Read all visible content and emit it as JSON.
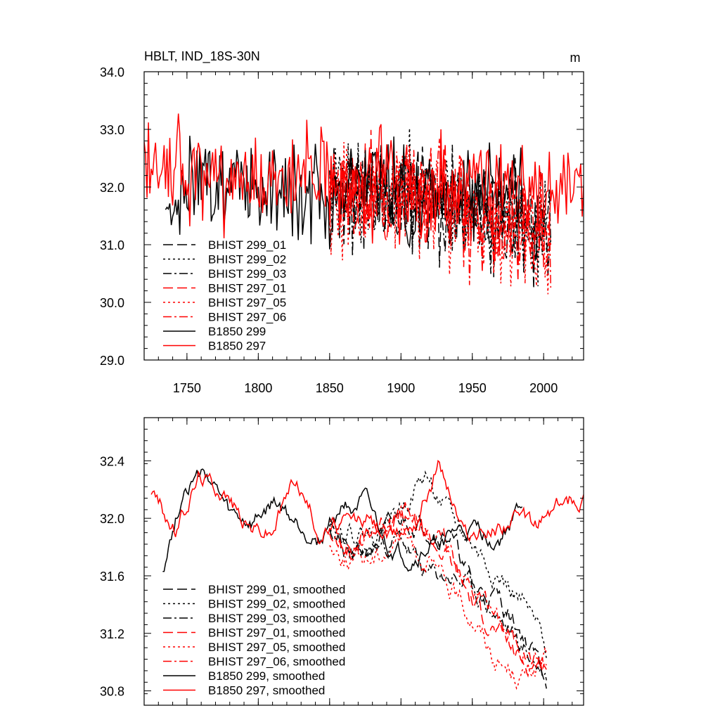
{
  "chart_data": [
    {
      "type": "line",
      "title": "HBLT, IND_18S-30N",
      "units": "m",
      "xlim": [
        1720,
        2028
      ],
      "ylim": [
        29.0,
        34.0
      ],
      "x_ticks": [
        1750,
        1800,
        1850,
        1900,
        1950,
        2000
      ],
      "x_tick_labels": [
        "1750",
        "1800",
        "1850",
        "1900",
        "1950",
        "2000"
      ],
      "y_ticks": [
        29.0,
        30.0,
        31.0,
        32.0,
        33.0,
        34.0
      ],
      "y_tick_labels": [
        "29.0",
        "30.0",
        "31.0",
        "32.0",
        "33.0",
        "34.0"
      ],
      "legend_position": "lower-left",
      "series": [
        {
          "name": "BHIST 299_01",
          "color": "#000000",
          "dash": "dash",
          "start": 1850,
          "end": 2005,
          "base": [
            31.9,
            31.85,
            31.85,
            31.8,
            31.6,
            31.4,
            31.2
          ],
          "amp": 0.55,
          "seed": 11
        },
        {
          "name": "BHIST 299_02",
          "color": "#000000",
          "dash": "dot",
          "start": 1850,
          "end": 2005,
          "base": [
            31.9,
            31.85,
            32.05,
            31.9,
            31.5,
            31.3,
            31.1
          ],
          "amp": 0.55,
          "seed": 12
        },
        {
          "name": "BHIST 299_03",
          "color": "#000000",
          "dash": "dashdot",
          "start": 1850,
          "end": 2005,
          "base": [
            31.85,
            31.8,
            31.9,
            31.7,
            31.4,
            31.3,
            31.0
          ],
          "amp": 0.55,
          "seed": 13
        },
        {
          "name": "BHIST 297_01",
          "color": "#ff0000",
          "dash": "dash",
          "start": 1850,
          "end": 2005,
          "base": [
            31.9,
            31.8,
            32.0,
            31.9,
            31.6,
            31.2,
            31.0
          ],
          "amp": 0.55,
          "seed": 14
        },
        {
          "name": "BHIST 297_05",
          "color": "#ff0000",
          "dash": "dot",
          "start": 1850,
          "end": 2005,
          "base": [
            31.85,
            31.8,
            31.9,
            31.75,
            31.4,
            31.1,
            30.9
          ],
          "amp": 0.55,
          "seed": 15
        },
        {
          "name": "BHIST 297_06",
          "color": "#ff0000",
          "dash": "dashdot",
          "start": 1850,
          "end": 2005,
          "base": [
            31.9,
            31.9,
            32.0,
            31.8,
            31.5,
            31.2,
            31.0
          ],
          "amp": 0.55,
          "seed": 16
        },
        {
          "name": "B1850 299",
          "color": "#000000",
          "dash": "solid",
          "start": 1735,
          "end": 1985,
          "base": [
            31.7,
            32.2,
            32.0,
            32.0,
            31.9,
            32.2,
            31.8,
            31.9,
            31.9,
            32.1
          ],
          "amp": 0.5,
          "seed": 17
        },
        {
          "name": "B1850 297",
          "color": "#ff0000",
          "dash": "solid",
          "start": 1720,
          "end": 2028,
          "base": [
            32.2,
            32.4,
            32.1,
            31.9,
            32.2,
            31.9,
            32.0,
            31.9,
            32.1,
            32.0,
            31.9,
            32.1
          ],
          "amp": 0.5,
          "seed": 18
        }
      ]
    },
    {
      "type": "line",
      "title": "",
      "xlim": [
        1720,
        2028
      ],
      "ylim": [
        30.7,
        32.7
      ],
      "x_ticks": [
        1750,
        1800,
        1850,
        1900,
        1950,
        2000
      ],
      "x_tick_labels": [],
      "y_ticks": [
        30.8,
        31.2,
        31.6,
        32.0,
        32.4
      ],
      "y_tick_labels": [
        "30.8",
        "31.2",
        "31.6",
        "32.0",
        "32.4"
      ],
      "legend_position": "lower-left",
      "series": [
        {
          "name": "BHIST 299_01, smoothed",
          "color": "#000000",
          "dash": "dash",
          "start": 1850,
          "end": 2002,
          "base": [
            31.95,
            31.7,
            31.85,
            32.0,
            31.95,
            31.9,
            31.5,
            31.45,
            31.2,
            30.9
          ],
          "amp": 0.12,
          "seed": 21
        },
        {
          "name": "BHIST 299_02, smoothed",
          "color": "#000000",
          "dash": "dot",
          "start": 1850,
          "end": 2002,
          "base": [
            32.0,
            31.9,
            31.9,
            32.1,
            32.3,
            32.0,
            31.8,
            31.6,
            31.4,
            31.1
          ],
          "amp": 0.12,
          "seed": 22
        },
        {
          "name": "BHIST 299_03, smoothed",
          "color": "#000000",
          "dash": "dashdot",
          "start": 1850,
          "end": 2002,
          "base": [
            31.9,
            31.7,
            31.8,
            31.85,
            31.6,
            31.6,
            31.5,
            31.3,
            31.1,
            30.9
          ],
          "amp": 0.12,
          "seed": 23
        },
        {
          "name": "BHIST 297_01, smoothed",
          "color": "#ff0000",
          "dash": "dash",
          "start": 1850,
          "end": 2002,
          "base": [
            31.95,
            31.8,
            31.95,
            32.05,
            31.9,
            31.7,
            31.4,
            31.2,
            31.0,
            31.0
          ],
          "amp": 0.12,
          "seed": 24
        },
        {
          "name": "BHIST 297_05, smoothed",
          "color": "#ff0000",
          "dash": "dot",
          "start": 1850,
          "end": 2002,
          "base": [
            31.8,
            31.7,
            31.75,
            31.9,
            31.7,
            31.5,
            31.3,
            31.0,
            30.9,
            31.0
          ],
          "amp": 0.12,
          "seed": 25
        },
        {
          "name": "BHIST 297_06, smoothed",
          "color": "#ff0000",
          "dash": "dashdot",
          "start": 1850,
          "end": 2002,
          "base": [
            31.9,
            31.8,
            31.9,
            32.0,
            31.95,
            31.8,
            31.5,
            31.3,
            31.1,
            31.0
          ],
          "amp": 0.12,
          "seed": 26
        },
        {
          "name": "B1850 299, smoothed",
          "color": "#000000",
          "dash": "solid",
          "start": 1733,
          "end": 1985,
          "base": [
            31.65,
            32.25,
            32.3,
            32.0,
            31.95,
            32.1,
            31.95,
            31.85,
            32.1,
            32.1,
            31.8,
            31.7,
            31.8,
            31.9,
            31.9,
            31.85,
            32.1
          ],
          "amp": 0.1,
          "seed": 27
        },
        {
          "name": "B1850 297, smoothed",
          "color": "#ff0000",
          "dash": "solid",
          "start": 1725,
          "end": 2028,
          "base": [
            32.2,
            31.9,
            32.3,
            32.2,
            31.95,
            31.9,
            32.3,
            31.9,
            31.95,
            32.0,
            31.85,
            32.0,
            32.4,
            31.9,
            31.9,
            32.0,
            31.95,
            32.1,
            32.15
          ],
          "amp": 0.1,
          "seed": 28
        }
      ]
    }
  ]
}
